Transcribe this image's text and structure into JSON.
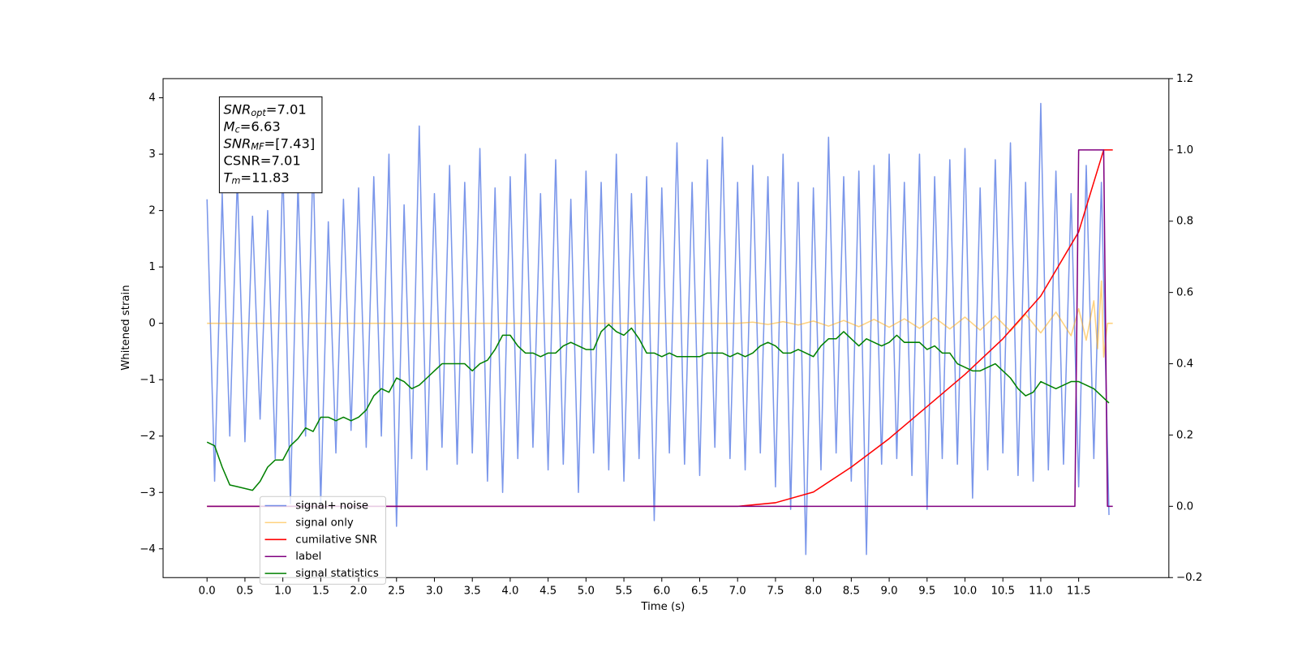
{
  "chart_data": {
    "type": "line",
    "xlabel": "Time (s)",
    "ylabel": "Whitened strain",
    "xlim": [
      -0.58,
      12.69
    ],
    "ylim": [
      -4.51,
      4.34
    ],
    "y2lim": [
      -0.2,
      1.2
    ],
    "xticks": [
      {
        "value": 0,
        "label": "0.0"
      },
      0.5,
      {
        "value": 1,
        "label": "1.0"
      },
      1.5,
      {
        "value": 2,
        "label": "2.0"
      },
      2.5,
      {
        "value": 3,
        "label": "3.0"
      },
      3.5,
      {
        "value": 4,
        "label": "4.0"
      },
      4.5,
      {
        "value": 5,
        "label": "5.0"
      },
      5.5,
      {
        "value": 6,
        "label": "6.0"
      },
      6.5,
      {
        "value": 7,
        "label": "7.0"
      },
      7.5,
      {
        "value": 8,
        "label": "8.0"
      },
      8.5,
      {
        "value": 9,
        "label": "9.0"
      },
      9.5,
      {
        "value": 10,
        "label": "10.0"
      },
      10.5,
      {
        "value": 11,
        "label": "11.0"
      },
      11.5
    ],
    "yticks": [
      {
        "value": -4,
        "label": "−4"
      },
      {
        "value": -3,
        "label": "−3"
      },
      {
        "value": -2,
        "label": "−2"
      },
      {
        "value": -1,
        "label": "−1"
      },
      0,
      1,
      2,
      3,
      4
    ],
    "y2ticks": [
      {
        "value": -0.2,
        "label": "−0.2"
      },
      {
        "value": 0,
        "label": "0.0"
      },
      0.2,
      0.4,
      0.6,
      0.8,
      {
        "value": 1,
        "label": "1.0"
      },
      1.2
    ],
    "legend": "lower left",
    "annotation": [
      {
        "text": "SNR",
        "sub": "opt",
        "suffix": "=7.01"
      },
      {
        "text": "M",
        "sub": "c",
        "suffix": "=6.63"
      },
      {
        "text": "SNR",
        "sub": "MF",
        "suffix": "=[7.43]"
      },
      {
        "text": "CSNR=7.01",
        "sub": "",
        "suffix": ""
      },
      {
        "text": "T",
        "sub": "m",
        "suffix": "=11.83"
      }
    ],
    "series": [
      {
        "name": "signal+ noise",
        "color": "#4169e1",
        "alpha": 0.7,
        "x": [
          0.0,
          0.1,
          0.2,
          0.3,
          0.4,
          0.5,
          0.6,
          0.7,
          0.8,
          0.9,
          1.0,
          1.1,
          1.2,
          1.3,
          1.4,
          1.5,
          1.6,
          1.7,
          1.8,
          1.9,
          2.0,
          2.1,
          2.2,
          2.3,
          2.4,
          2.5,
          2.6,
          2.7,
          2.8,
          2.9,
          3.0,
          3.1,
          3.2,
          3.3,
          3.4,
          3.5,
          3.6,
          3.7,
          3.8,
          3.9,
          4.0,
          4.1,
          4.2,
          4.3,
          4.4,
          4.5,
          4.6,
          4.7,
          4.8,
          4.9,
          5.0,
          5.1,
          5.2,
          5.3,
          5.4,
          5.5,
          5.6,
          5.7,
          5.8,
          5.9,
          6.0,
          6.1,
          6.2,
          6.3,
          6.4,
          6.5,
          6.6,
          6.7,
          6.8,
          6.9,
          7.0,
          7.1,
          7.2,
          7.3,
          7.4,
          7.5,
          7.6,
          7.7,
          7.8,
          7.9,
          8.0,
          8.1,
          8.2,
          8.3,
          8.4,
          8.5,
          8.6,
          8.7,
          8.8,
          8.9,
          9.0,
          9.1,
          9.2,
          9.3,
          9.4,
          9.5,
          9.6,
          9.7,
          9.8,
          9.9,
          10.0,
          10.1,
          10.2,
          10.3,
          10.4,
          10.5,
          10.6,
          10.7,
          10.8,
          10.9,
          11.0,
          11.1,
          11.2,
          11.3,
          11.4,
          11.5,
          11.6,
          11.7,
          11.8,
          11.9
        ],
        "values": [
          2.2,
          -2.8,
          2.3,
          -2.0,
          2.6,
          -2.1,
          1.9,
          -1.7,
          2.0,
          -2.4,
          2.8,
          -3.2,
          2.5,
          -2.0,
          2.9,
          -3.2,
          1.8,
          -2.3,
          2.2,
          -1.9,
          2.4,
          -2.2,
          2.6,
          -2.0,
          3.0,
          -3.6,
          2.1,
          -2.4,
          3.5,
          -2.6,
          2.3,
          -2.2,
          2.8,
          -2.5,
          2.5,
          -2.3,
          3.1,
          -2.8,
          2.4,
          -3.0,
          2.6,
          -2.4,
          3.0,
          -2.2,
          2.3,
          -2.6,
          2.9,
          -2.5,
          2.2,
          -3.0,
          2.7,
          -2.3,
          2.5,
          -2.6,
          3.0,
          -2.8,
          2.3,
          -2.4,
          2.6,
          -3.5,
          2.4,
          -2.3,
          3.2,
          -2.5,
          2.5,
          -2.7,
          2.9,
          -2.2,
          3.3,
          -2.4,
          2.5,
          -2.6,
          2.8,
          -2.3,
          2.6,
          -2.9,
          3.0,
          -3.3,
          2.5,
          -4.1,
          2.4,
          -2.6,
          3.3,
          -2.3,
          2.6,
          -2.8,
          2.7,
          -4.1,
          2.8,
          -2.5,
          3.0,
          -2.4,
          2.5,
          -2.7,
          3.0,
          -3.3,
          2.6,
          -2.4,
          2.9,
          -2.5,
          3.1,
          -3.1,
          2.4,
          -2.6,
          2.9,
          -2.3,
          3.2,
          -2.7,
          2.5,
          -2.8,
          3.9,
          -2.6,
          2.7,
          -2.5,
          2.3,
          -2.9,
          2.8,
          -2.4,
          2.5,
          -3.4
        ]
      },
      {
        "name": "signal only",
        "color": "#ffa500",
        "alpha": 0.5,
        "x": [
          0.0,
          7.0,
          7.2,
          7.4,
          7.6,
          7.8,
          8.0,
          8.2,
          8.4,
          8.6,
          8.8,
          9.0,
          9.2,
          9.4,
          9.6,
          9.8,
          10.0,
          10.2,
          10.4,
          10.6,
          10.8,
          11.0,
          11.2,
          11.4,
          11.5,
          11.6,
          11.7,
          11.75,
          11.8,
          11.83,
          11.88,
          11.95
        ],
        "values": [
          0,
          0,
          0.02,
          -0.02,
          0.03,
          -0.03,
          0.04,
          -0.05,
          0.05,
          -0.06,
          0.07,
          -0.07,
          0.08,
          -0.09,
          0.1,
          -0.1,
          0.11,
          -0.12,
          0.13,
          -0.14,
          0.16,
          -0.17,
          0.2,
          -0.22,
          0.26,
          -0.3,
          0.4,
          -0.45,
          0.75,
          -0.6,
          0,
          0
        ]
      },
      {
        "name": "cumilative SNR",
        "color": "#ff0000",
        "alpha": 1,
        "axis": "y2",
        "x": [
          0.0,
          7.0,
          7.5,
          8.0,
          8.5,
          9.0,
          9.5,
          10.0,
          10.5,
          11.0,
          11.5,
          11.83,
          11.95
        ],
        "values": [
          0,
          0,
          0.01,
          0.04,
          0.11,
          0.19,
          0.28,
          0.37,
          0.47,
          0.59,
          0.77,
          1.0,
          1.0
        ]
      },
      {
        "name": "label",
        "color": "#800080",
        "alpha": 1,
        "axis": "y2",
        "x": [
          0.0,
          11.45,
          11.5,
          11.83,
          11.88,
          11.95
        ],
        "values": [
          0,
          0,
          1,
          1,
          0,
          0
        ]
      },
      {
        "name": "signal statistics",
        "color": "#008000",
        "alpha": 1,
        "axis": "y2",
        "x": [
          0.0,
          0.1,
          0.2,
          0.3,
          0.4,
          0.5,
          0.6,
          0.7,
          0.8,
          0.9,
          1.0,
          1.1,
          1.2,
          1.3,
          1.4,
          1.5,
          1.6,
          1.7,
          1.8,
          1.9,
          2.0,
          2.1,
          2.2,
          2.3,
          2.4,
          2.5,
          2.6,
          2.7,
          2.8,
          2.9,
          3.0,
          3.1,
          3.2,
          3.3,
          3.4,
          3.5,
          3.6,
          3.7,
          3.8,
          3.9,
          4.0,
          4.1,
          4.2,
          4.3,
          4.4,
          4.5,
          4.6,
          4.7,
          4.8,
          4.9,
          5.0,
          5.1,
          5.2,
          5.3,
          5.4,
          5.5,
          5.6,
          5.7,
          5.8,
          5.9,
          6.0,
          6.1,
          6.2,
          6.3,
          6.4,
          6.5,
          6.6,
          6.7,
          6.8,
          6.9,
          7.0,
          7.1,
          7.2,
          7.3,
          7.4,
          7.5,
          7.6,
          7.7,
          7.8,
          7.9,
          8.0,
          8.1,
          8.2,
          8.3,
          8.4,
          8.5,
          8.6,
          8.7,
          8.8,
          8.9,
          9.0,
          9.1,
          9.2,
          9.3,
          9.4,
          9.5,
          9.6,
          9.7,
          9.8,
          9.9,
          10.0,
          10.1,
          10.2,
          10.3,
          10.4,
          10.5,
          10.6,
          10.7,
          10.8,
          10.9,
          11.0,
          11.1,
          11.2,
          11.3,
          11.4,
          11.5,
          11.6,
          11.7,
          11.8,
          11.9
        ],
        "values": [
          0.18,
          0.17,
          0.11,
          0.06,
          0.055,
          0.05,
          0.045,
          0.07,
          0.11,
          0.13,
          0.13,
          0.17,
          0.19,
          0.22,
          0.21,
          0.25,
          0.25,
          0.24,
          0.25,
          0.24,
          0.25,
          0.27,
          0.31,
          0.33,
          0.32,
          0.36,
          0.35,
          0.33,
          0.34,
          0.36,
          0.38,
          0.4,
          0.4,
          0.4,
          0.4,
          0.38,
          0.4,
          0.41,
          0.44,
          0.48,
          0.48,
          0.45,
          0.43,
          0.43,
          0.42,
          0.43,
          0.43,
          0.45,
          0.46,
          0.45,
          0.44,
          0.44,
          0.49,
          0.51,
          0.49,
          0.48,
          0.5,
          0.47,
          0.43,
          0.43,
          0.42,
          0.43,
          0.42,
          0.42,
          0.42,
          0.42,
          0.43,
          0.43,
          0.43,
          0.42,
          0.43,
          0.42,
          0.43,
          0.45,
          0.46,
          0.45,
          0.43,
          0.43,
          0.44,
          0.43,
          0.42,
          0.45,
          0.47,
          0.47,
          0.49,
          0.47,
          0.45,
          0.47,
          0.46,
          0.45,
          0.46,
          0.48,
          0.46,
          0.46,
          0.46,
          0.44,
          0.45,
          0.43,
          0.43,
          0.4,
          0.39,
          0.38,
          0.38,
          0.39,
          0.4,
          0.38,
          0.36,
          0.33,
          0.31,
          0.32,
          0.35,
          0.34,
          0.33,
          0.34,
          0.35,
          0.35,
          0.34,
          0.33,
          0.31,
          0.29
        ]
      }
    ]
  }
}
